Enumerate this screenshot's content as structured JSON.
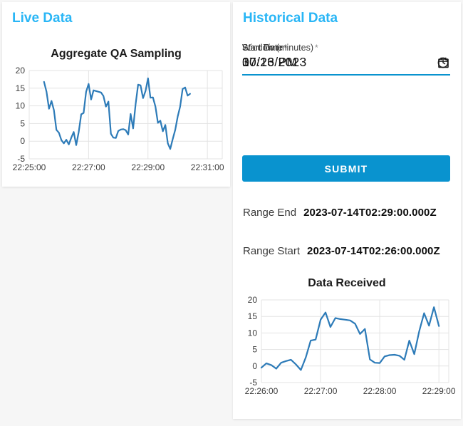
{
  "page": {
    "background": "#f6f6f6",
    "card_background": "#ffffff"
  },
  "theme": {
    "accent_blue": "#0993cf",
    "heading_blue": "#29b6f6",
    "line_blue": "#2d7bb8",
    "grid_color": "#e3e3e3",
    "tick_color": "#3d3d3d"
  },
  "live_panel": {
    "title": "Live Data"
  },
  "historical_panel": {
    "title": "Historical Data",
    "form": {
      "fields": [
        {
          "label": "Start Date",
          "required_marker": "*",
          "value": "07/13/2023",
          "icon": "calendar-icon"
        },
        {
          "label": "Start Time",
          "required_marker": "*",
          "value": "10:26 PM",
          "icon": "clock-icon"
        },
        {
          "label": "Window (minutes)",
          "required_marker": "*",
          "value": "3",
          "icon": null
        }
      ],
      "submit_label": "SUBMIT"
    },
    "results": [
      {
        "label": "Range End",
        "value": "2023-07-14T02:29:00.000Z"
      },
      {
        "label": "Range Start",
        "value": "2023-07-14T02:26:00.000Z"
      }
    ]
  },
  "chart_data": [
    {
      "id": "aggregate-qa-sampling",
      "type": "line",
      "title": "Aggregate QA Sampling",
      "xlabel": "",
      "ylabel": "",
      "xlim": [
        "22:25:00",
        "22:31:30"
      ],
      "ylim": [
        -5,
        20
      ],
      "xticks": [
        "22:25:00",
        "22:27:00",
        "22:29:00",
        "22:31:00"
      ],
      "yticks": [
        -5,
        0,
        5,
        10,
        15,
        20
      ],
      "grid": true,
      "legend": false,
      "line_color": "#2d7bb8",
      "x_start": "22:25:30",
      "x_step_seconds": 5,
      "values": [
        16.8,
        14.0,
        9.2,
        11.4,
        8.8,
        3.2,
        2.4,
        0.3,
        -0.6,
        0.4,
        -0.9,
        1.0,
        2.6,
        -1.1,
        2.6,
        7.6,
        8.0,
        14.0,
        16.2,
        11.8,
        14.4,
        14.2,
        14.0,
        13.8,
        12.8,
        9.8,
        11.2,
        2.1,
        1.0,
        0.9,
        2.9,
        3.3,
        3.4,
        3.1,
        1.9,
        7.7,
        3.6,
        10.5,
        16.0,
        15.8,
        12.2,
        14.2,
        17.8,
        12.3,
        12.4,
        9.8,
        5.2,
        5.8,
        2.8,
        4.6,
        -0.6,
        -2.2,
        0.6,
        3.2,
        7.0,
        9.8,
        14.8,
        15.2,
        12.9,
        13.4
      ]
    },
    {
      "id": "data-received",
      "type": "line",
      "title": "Data Received",
      "xlabel": "",
      "ylabel": "",
      "xlim": [
        "22:26:00",
        "22:29:10"
      ],
      "ylim": [
        -5,
        20
      ],
      "xticks": [
        "22:26:00",
        "22:27:00",
        "22:28:00",
        "22:29:00"
      ],
      "yticks": [
        -5,
        0,
        5,
        10,
        15,
        20
      ],
      "grid": true,
      "legend": false,
      "line_color": "#2d7bb8",
      "x_start": "22:26:00",
      "x_step_seconds": 5,
      "values": [
        -0.5,
        0.8,
        0.3,
        -0.8,
        1.0,
        1.5,
        1.9,
        0.5,
        -1.2,
        2.6,
        7.7,
        8.0,
        14.0,
        16.2,
        11.8,
        14.5,
        14.2,
        14.0,
        13.8,
        12.8,
        9.7,
        11.2,
        2.0,
        1.0,
        0.9,
        2.9,
        3.3,
        3.4,
        3.1,
        1.9,
        7.7,
        3.6,
        10.5,
        16.0,
        12.2,
        17.8,
        12.1
      ]
    }
  ]
}
